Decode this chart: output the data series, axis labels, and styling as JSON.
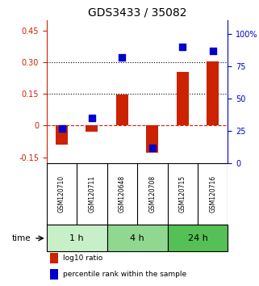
{
  "title": "GDS3433 / 35082",
  "categories": [
    "GSM120710",
    "GSM120711",
    "GSM120648",
    "GSM120708",
    "GSM120715",
    "GSM120716"
  ],
  "log10_ratio": [
    -0.09,
    -0.03,
    0.145,
    -0.13,
    0.255,
    0.305
  ],
  "percentile_rank": [
    27,
    35,
    82,
    12,
    90,
    87
  ],
  "time_groups": [
    {
      "label": "1 h",
      "start": 0,
      "end": 2,
      "color": "#c8f0c8"
    },
    {
      "label": "4 h",
      "start": 2,
      "end": 4,
      "color": "#90d890"
    },
    {
      "label": "24 h",
      "start": 4,
      "end": 6,
      "color": "#55c055"
    }
  ],
  "bar_color": "#cc2200",
  "dot_color": "#0000cc",
  "ylim_left": [
    -0.18,
    0.5
  ],
  "ylim_right": [
    0,
    111
  ],
  "yticks_left": [
    -0.15,
    0,
    0.15,
    0.3,
    0.45
  ],
  "ytick_labels_left": [
    "-0.15",
    "0",
    "0.15",
    "0.30",
    "0.45"
  ],
  "yticks_right": [
    0,
    25,
    50,
    75,
    100
  ],
  "ytick_labels_right": [
    "0",
    "25",
    "50",
    "75",
    "100%"
  ],
  "hlines": [
    0.15,
    0.3
  ],
  "hline_zero_color": "#cc2200",
  "hline_dotted_color": "black",
  "left_axis_color": "#cc2200",
  "right_axis_color": "#0000cc",
  "legend_items": [
    "log10 ratio",
    "percentile rank within the sample"
  ],
  "legend_colors": [
    "#cc2200",
    "#0000cc"
  ],
  "bar_width": 0.4,
  "dot_size": 40,
  "time_label": "time",
  "background_sample": "#cccccc"
}
